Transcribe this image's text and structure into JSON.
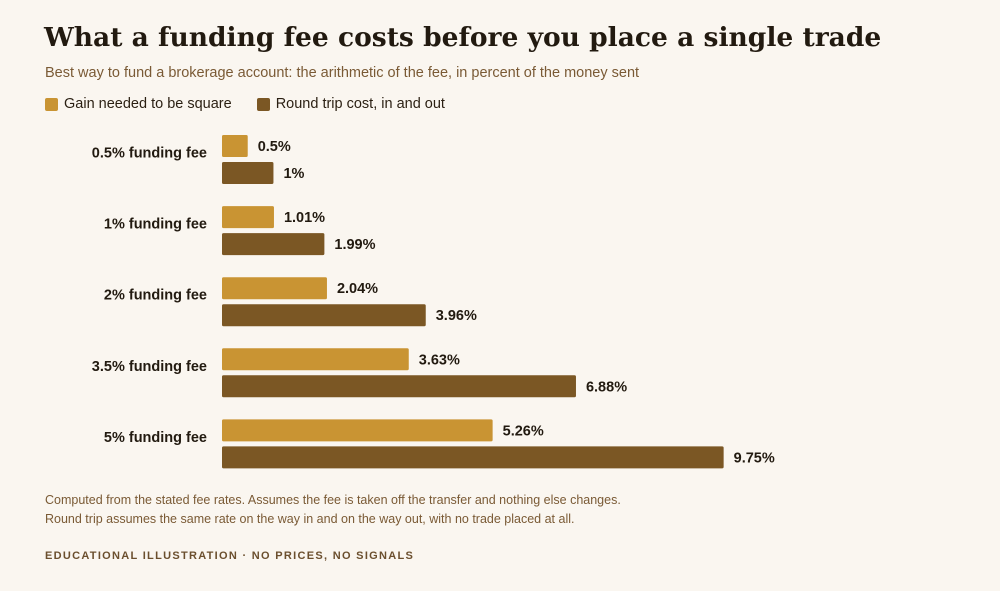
{
  "colors": {
    "background": "#faf6f0",
    "gain_series": "#c99433",
    "roundtrip_series": "#7b5724"
  },
  "chart_data": {
    "type": "bar",
    "orientation": "horizontal",
    "title": "What a funding fee costs before you place a single trade",
    "subtitle": "Best way to fund a brokerage account: the arithmetic of the fee, in percent of the money sent",
    "categories": [
      "0.5% funding fee",
      "1% funding fee",
      "2% funding fee",
      "3.5% funding fee",
      "5% funding fee"
    ],
    "series": [
      {
        "name": "Gain needed to be square",
        "color": "#c99433",
        "values": [
          0.5,
          1.01,
          2.04,
          3.63,
          5.26
        ],
        "labels": [
          "0.5%",
          "1.01%",
          "2.04%",
          "3.63%",
          "5.26%"
        ]
      },
      {
        "name": "Round trip cost, in and out",
        "color": "#7b5724",
        "values": [
          1,
          1.99,
          3.96,
          6.88,
          9.75
        ],
        "labels": [
          "1%",
          "1.99%",
          "3.96%",
          "6.88%",
          "9.75%"
        ]
      }
    ],
    "xlim": [
      0,
      10
    ],
    "grid": false,
    "legend_position": "top-left"
  },
  "notes": [
    "Computed from the stated fee rates. Assumes the fee is taken off the transfer and nothing else changes.",
    "Round trip assumes the same rate on the way in and on the way out, with no trade placed at all."
  ],
  "footer": "EDUCATIONAL ILLUSTRATION · NO PRICES, NO SIGNALS"
}
